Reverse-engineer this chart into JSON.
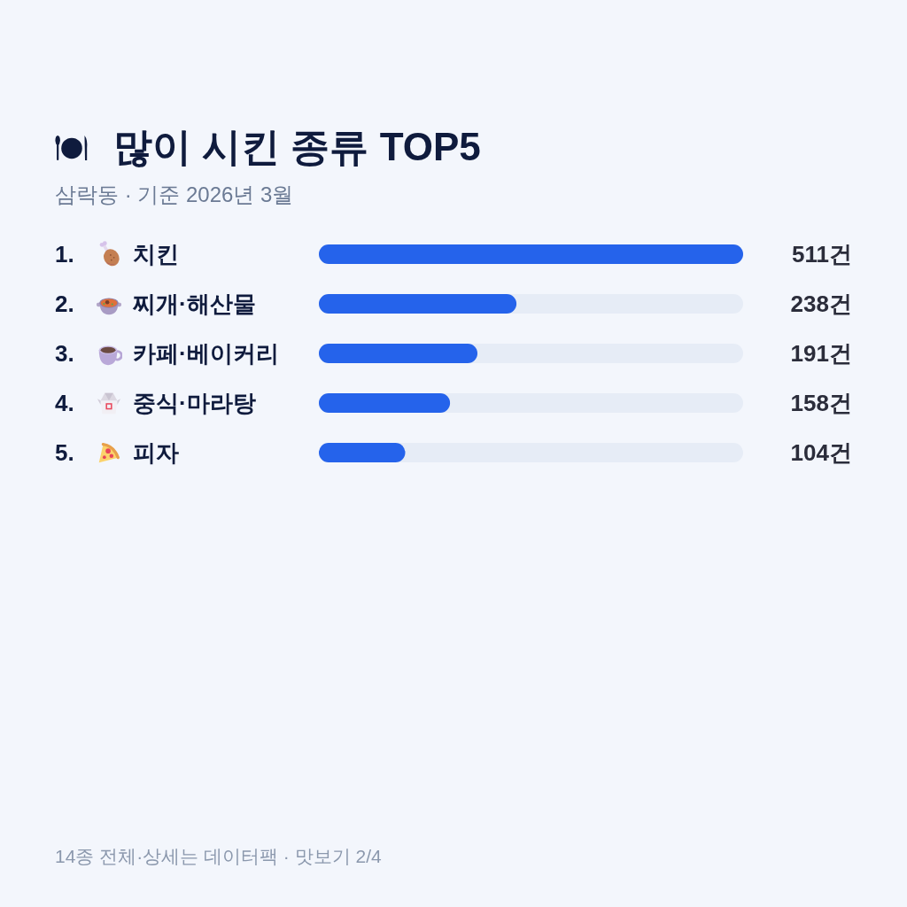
{
  "chart_data": {
    "type": "bar",
    "orientation": "horizontal",
    "title": "많이 시킨 종류 TOP5",
    "subtitle": "삼락동 · 기준 2026년 3월",
    "categories": [
      "1. 치킨",
      "2. 찌개·해산물",
      "3. 카페·베이커리",
      "4. 중식·마라탕",
      "5. 피자"
    ],
    "values": [
      511,
      238,
      191,
      158,
      104
    ],
    "color": "#2563eb",
    "value_labels": [
      "511건",
      "238건",
      "191건",
      "158건",
      "104건"
    ],
    "annotations": [
      "14종 전체·상세는 데이터팩 · 맛보기 2/4"
    ]
  }
}
